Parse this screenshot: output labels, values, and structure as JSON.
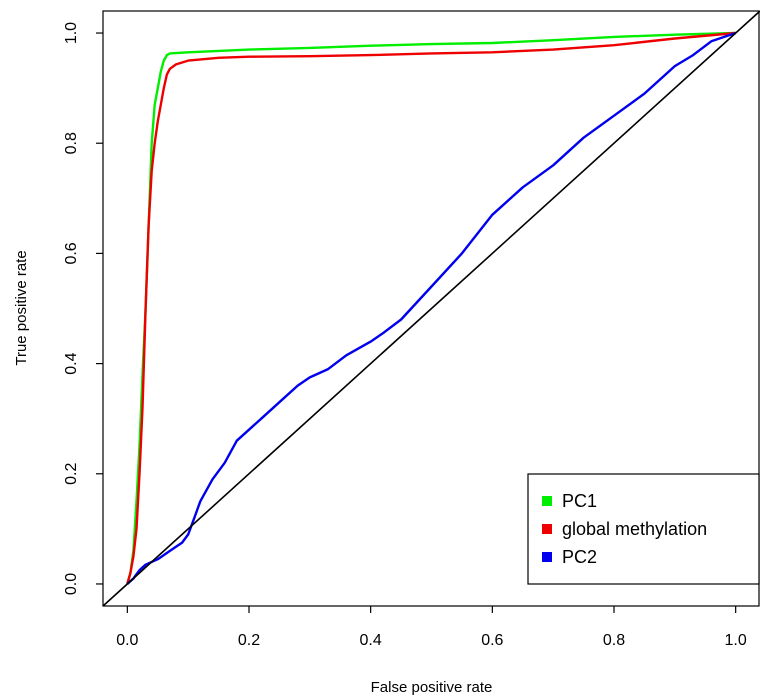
{
  "chart_data": {
    "type": "line",
    "title": "",
    "xlabel": "False positive rate",
    "ylabel": "True positive rate",
    "xlim": [
      -0.04,
      1.04
    ],
    "ylim": [
      -0.04,
      1.04
    ],
    "x_ticks": [
      0.0,
      0.2,
      0.4,
      0.6,
      0.8,
      1.0
    ],
    "y_ticks": [
      0.0,
      0.2,
      0.4,
      0.6,
      0.8,
      1.0
    ],
    "x_tick_labels": [
      "0.0",
      "0.2",
      "0.4",
      "0.6",
      "0.8",
      "1.0"
    ],
    "y_tick_labels": [
      "0.0",
      "0.2",
      "0.4",
      "0.6",
      "0.8",
      "1.0"
    ],
    "grid": false,
    "legend_position": "bottom-right",
    "reference_line": {
      "x": [
        0,
        1
      ],
      "y": [
        0,
        1
      ],
      "color": "#000000"
    },
    "series": [
      {
        "name": "PC1",
        "color": "#00ee00",
        "x": [
          0.0,
          0.005,
          0.01,
          0.015,
          0.02,
          0.025,
          0.03,
          0.035,
          0.04,
          0.045,
          0.05,
          0.055,
          0.06,
          0.065,
          0.07,
          0.1,
          0.2,
          0.3,
          0.4,
          0.5,
          0.6,
          0.7,
          0.8,
          0.9,
          1.0
        ],
        "y": [
          0.0,
          0.02,
          0.06,
          0.15,
          0.25,
          0.38,
          0.5,
          0.65,
          0.8,
          0.87,
          0.9,
          0.93,
          0.95,
          0.96,
          0.963,
          0.965,
          0.97,
          0.973,
          0.977,
          0.98,
          0.982,
          0.987,
          0.993,
          0.997,
          1.0
        ]
      },
      {
        "name": "global methylation",
        "color": "#ee0000",
        "x": [
          0.0,
          0.005,
          0.01,
          0.015,
          0.02,
          0.025,
          0.03,
          0.035,
          0.04,
          0.045,
          0.05,
          0.055,
          0.06,
          0.065,
          0.07,
          0.08,
          0.1,
          0.15,
          0.2,
          0.3,
          0.4,
          0.5,
          0.6,
          0.7,
          0.8,
          0.9,
          1.0
        ],
        "y": [
          0.0,
          0.02,
          0.05,
          0.1,
          0.2,
          0.32,
          0.5,
          0.65,
          0.75,
          0.8,
          0.84,
          0.87,
          0.9,
          0.925,
          0.935,
          0.943,
          0.95,
          0.955,
          0.957,
          0.958,
          0.96,
          0.963,
          0.965,
          0.97,
          0.978,
          0.99,
          1.0
        ]
      },
      {
        "name": "PC2",
        "color": "#0000ee",
        "x": [
          0.0,
          0.01,
          0.02,
          0.03,
          0.05,
          0.07,
          0.09,
          0.1,
          0.11,
          0.12,
          0.14,
          0.16,
          0.18,
          0.2,
          0.22,
          0.25,
          0.28,
          0.3,
          0.33,
          0.36,
          0.4,
          0.42,
          0.45,
          0.5,
          0.55,
          0.6,
          0.65,
          0.7,
          0.75,
          0.8,
          0.85,
          0.9,
          0.93,
          0.96,
          1.0
        ],
        "y": [
          0.0,
          0.01,
          0.025,
          0.035,
          0.045,
          0.06,
          0.075,
          0.09,
          0.12,
          0.15,
          0.19,
          0.22,
          0.26,
          0.28,
          0.3,
          0.33,
          0.36,
          0.375,
          0.39,
          0.415,
          0.44,
          0.455,
          0.48,
          0.54,
          0.6,
          0.67,
          0.72,
          0.76,
          0.81,
          0.85,
          0.89,
          0.94,
          0.96,
          0.985,
          1.0
        ]
      }
    ]
  }
}
